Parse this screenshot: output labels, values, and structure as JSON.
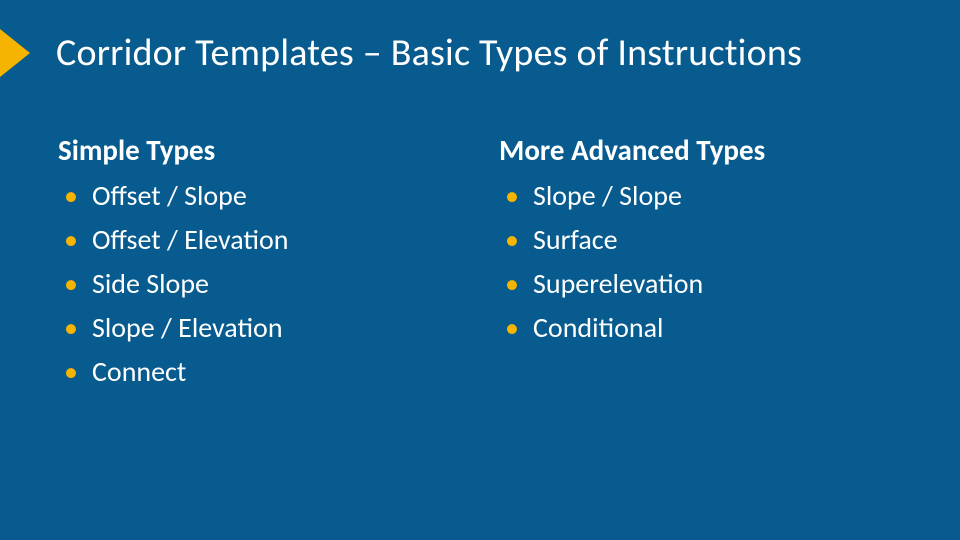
{
  "colors": {
    "background": "#075b8f",
    "accent": "#f5b400",
    "text": "#ffffff"
  },
  "title": "Corridor Templates – Basic Types of Instructions",
  "columns": {
    "left": {
      "heading": "Simple Types",
      "items": [
        "Offset / Slope",
        "Offset / Elevation",
        "Side Slope",
        "Slope / Elevation",
        "Connect"
      ]
    },
    "right": {
      "heading": "More Advanced Types",
      "items": [
        "Slope / Slope",
        "Surface",
        "Superelevation",
        "Conditional"
      ]
    }
  },
  "typography": {
    "title_fontsize": 38,
    "heading_fontsize": 29,
    "body_fontsize": 28,
    "line_height": 44,
    "font_family": "Calibri"
  }
}
